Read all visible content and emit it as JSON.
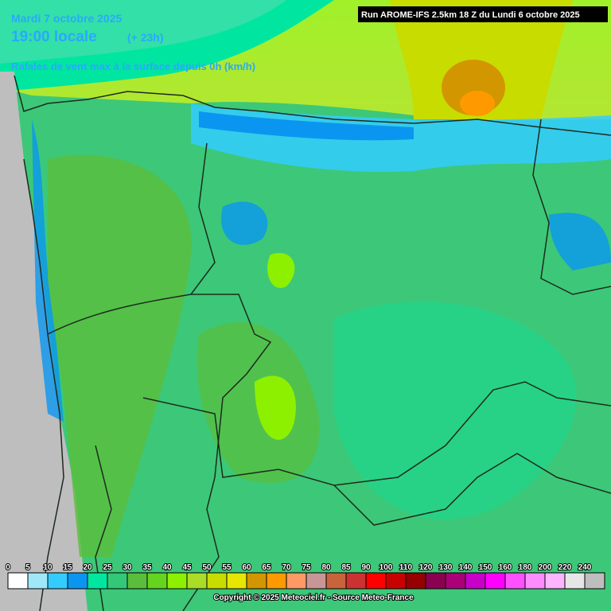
{
  "header": {
    "date": "Mardi 7 octobre 2025",
    "time": "19:00 locale",
    "lead": "(+ 23h)",
    "parameter": "Rafales de vent max à la surface depuis 0h (km/h)"
  },
  "run": "Run AROME-IFS 2.5km 18 Z du Lundi 6 octobre 2025",
  "legend": {
    "items": [
      {
        "label": "0",
        "color": "#ffffff"
      },
      {
        "label": "5",
        "color": "#9fe8fa"
      },
      {
        "label": "10",
        "color": "#33ccff"
      },
      {
        "label": "15",
        "color": "#0a96f0"
      },
      {
        "label": "20",
        "color": "#00e6a0"
      },
      {
        "label": "25",
        "color": "#33c878"
      },
      {
        "label": "30",
        "color": "#5abe3c"
      },
      {
        "label": "35",
        "color": "#66d41e"
      },
      {
        "label": "40",
        "color": "#8cf000"
      },
      {
        "label": "45",
        "color": "#aadc28"
      },
      {
        "label": "50",
        "color": "#c8dc00"
      },
      {
        "label": "55",
        "color": "#e6e600"
      },
      {
        "label": "60",
        "color": "#d29600"
      },
      {
        "label": "65",
        "color": "#ff9900"
      },
      {
        "label": "70",
        "color": "#ff9966"
      },
      {
        "label": "75",
        "color": "#c89696"
      },
      {
        "label": "80",
        "color": "#c8643c"
      },
      {
        "label": "85",
        "color": "#cd3232"
      },
      {
        "label": "90",
        "color": "#ff0000"
      },
      {
        "label": "100",
        "color": "#c80000"
      },
      {
        "label": "110",
        "color": "#960000"
      },
      {
        "label": "120",
        "color": "#8c0050"
      },
      {
        "label": "130",
        "color": "#aa0078"
      },
      {
        "label": "140",
        "color": "#c800c8"
      },
      {
        "label": "150",
        "color": "#ff00ff"
      },
      {
        "label": "160",
        "color": "#ff50ff"
      },
      {
        "label": "180",
        "color": "#ff8cff"
      },
      {
        "label": "200",
        "color": "#ffb4ff"
      },
      {
        "label": "220",
        "color": "#e6e6e6"
      },
      {
        "label": "240",
        "color": "#bebebe"
      }
    ]
  },
  "footer": "Copyright © 2025 Meteociel.fr - Source Meteo-France"
}
